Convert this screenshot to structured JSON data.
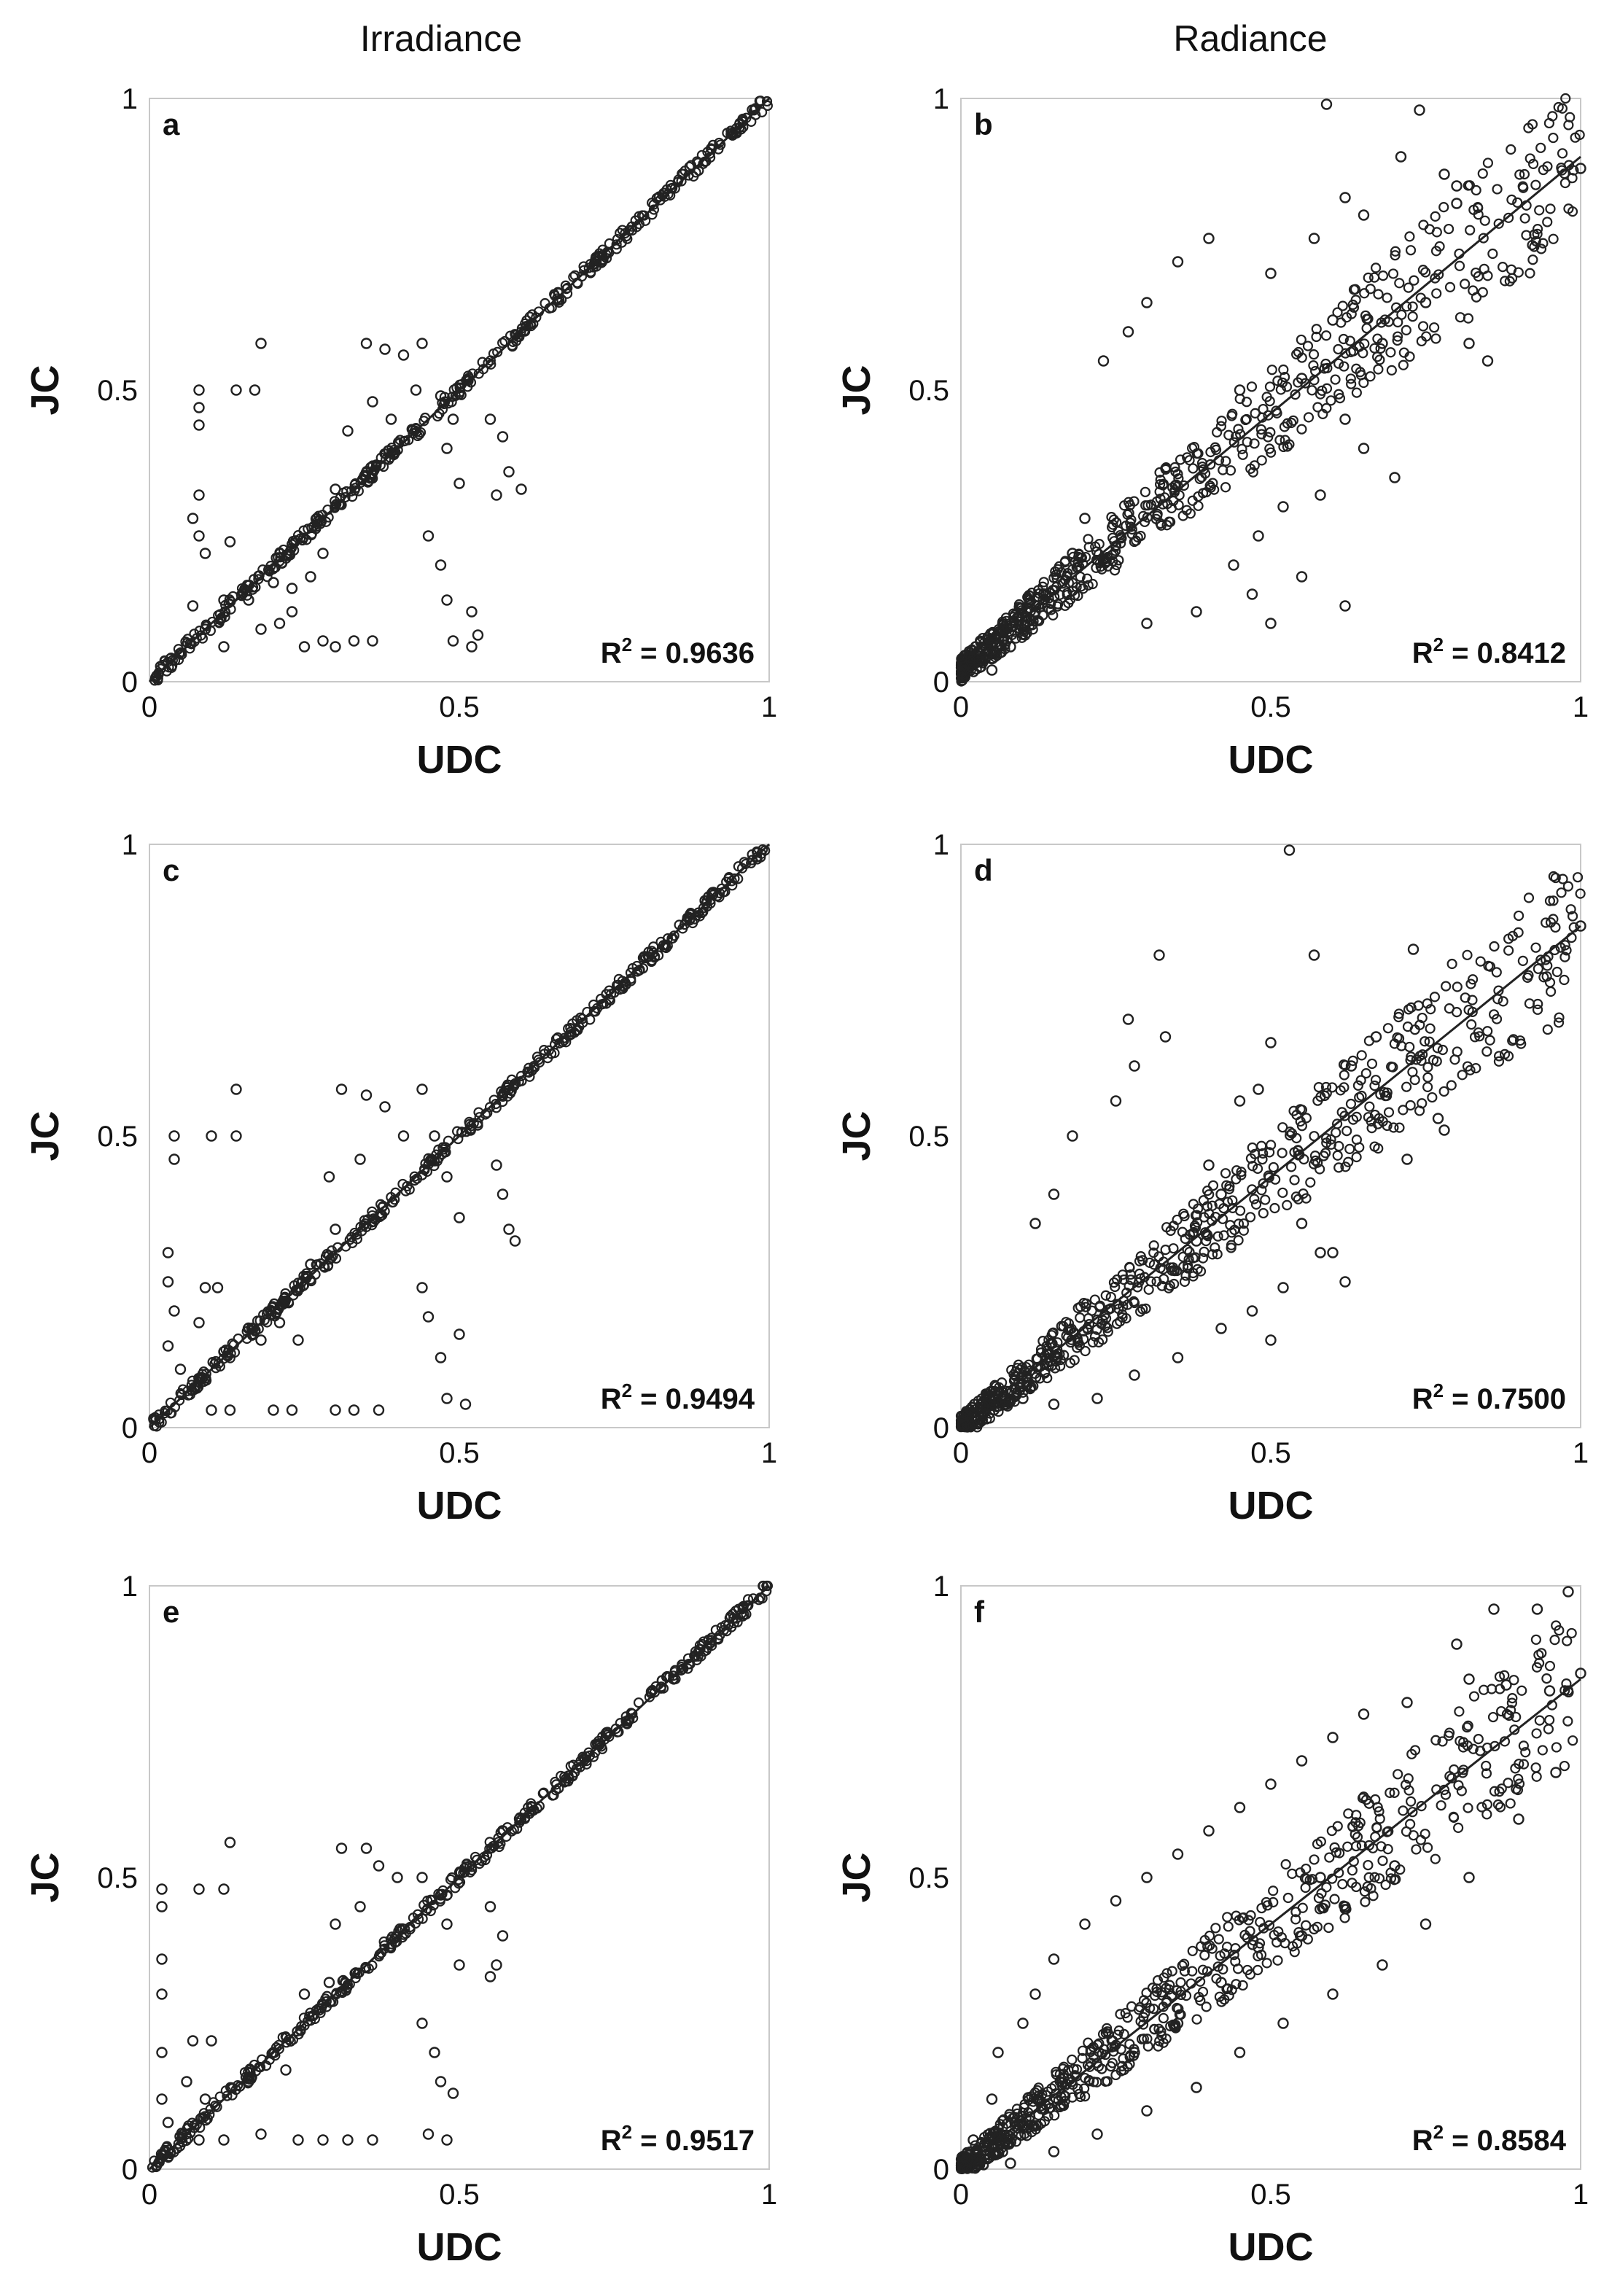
{
  "column_titles": [
    "Irradiance",
    "Radiance"
  ],
  "chart_data": [
    {
      "panel": "a",
      "column": "Irradiance",
      "type": "scatter",
      "xlabel": "UDC",
      "ylabel": "JC",
      "xlim": [
        0,
        1
      ],
      "ylim": [
        0,
        1
      ],
      "x_ticks": [
        "0",
        "0.5",
        "1"
      ],
      "y_ticks": [
        "0",
        "0.5",
        "1"
      ],
      "r2_text": "R2 = 0.9636",
      "r2_base": "R",
      "r2_sup": "2",
      "r2_value": " = 0.9636",
      "fit_line": {
        "slope": 1.0,
        "intercept": 0.0
      },
      "grid": false,
      "marker": "open-circle",
      "points": [
        [
          0.08,
          0.5
        ],
        [
          0.08,
          0.47
        ],
        [
          0.08,
          0.44
        ],
        [
          0.08,
          0.32
        ],
        [
          0.07,
          0.28
        ],
        [
          0.08,
          0.25
        ],
        [
          0.09,
          0.22
        ],
        [
          0.07,
          0.13
        ],
        [
          0.09,
          0.09
        ],
        [
          0.12,
          0.06
        ],
        [
          0.14,
          0.5
        ],
        [
          0.18,
          0.58
        ],
        [
          0.17,
          0.5
        ],
        [
          0.13,
          0.24
        ],
        [
          0.12,
          0.14
        ],
        [
          0.16,
          0.14
        ],
        [
          0.18,
          0.09
        ],
        [
          0.21,
          0.1
        ],
        [
          0.23,
          0.12
        ],
        [
          0.25,
          0.06
        ],
        [
          0.28,
          0.07
        ],
        [
          0.3,
          0.06
        ],
        [
          0.33,
          0.07
        ],
        [
          0.36,
          0.07
        ],
        [
          0.32,
          0.43
        ],
        [
          0.3,
          0.33
        ],
        [
          0.35,
          0.58
        ],
        [
          0.38,
          0.57
        ],
        [
          0.41,
          0.56
        ],
        [
          0.43,
          0.5
        ],
        [
          0.36,
          0.48
        ],
        [
          0.39,
          0.45
        ],
        [
          0.44,
          0.58
        ],
        [
          0.47,
          0.49
        ],
        [
          0.49,
          0.45
        ],
        [
          0.48,
          0.4
        ],
        [
          0.5,
          0.34
        ],
        [
          0.55,
          0.45
        ],
        [
          0.57,
          0.42
        ],
        [
          0.58,
          0.36
        ],
        [
          0.6,
          0.33
        ],
        [
          0.56,
          0.32
        ],
        [
          0.45,
          0.25
        ],
        [
          0.47,
          0.2
        ],
        [
          0.48,
          0.14
        ],
        [
          0.52,
          0.12
        ],
        [
          0.53,
          0.08
        ],
        [
          0.49,
          0.07
        ],
        [
          0.52,
          0.06
        ],
        [
          0.27,
          0.28
        ],
        [
          0.28,
          0.22
        ],
        [
          0.2,
          0.17
        ],
        [
          0.23,
          0.16
        ],
        [
          0.26,
          0.18
        ]
      ]
    },
    {
      "panel": "b",
      "column": "Radiance",
      "type": "scatter",
      "xlabel": "UDC",
      "ylabel": "JC",
      "xlim": [
        0,
        1
      ],
      "ylim": [
        0,
        1
      ],
      "x_ticks": [
        "0",
        "0.5",
        "1"
      ],
      "y_ticks": [
        "0",
        "0.5",
        "1"
      ],
      "r2_text": "R2 = 0.8412",
      "r2_base": "R",
      "r2_sup": "2",
      "r2_value": " = 0.8412",
      "fit_line": {
        "slope": 0.88,
        "intercept": 0.02
      },
      "grid": false,
      "marker": "open-circle",
      "points": [
        [
          0.59,
          0.99
        ],
        [
          0.74,
          0.98
        ],
        [
          0.71,
          0.9
        ],
        [
          0.78,
          0.87
        ],
        [
          0.8,
          0.85
        ],
        [
          0.62,
          0.83
        ],
        [
          0.65,
          0.8
        ],
        [
          0.4,
          0.76
        ],
        [
          0.35,
          0.72
        ],
        [
          0.3,
          0.65
        ],
        [
          0.27,
          0.6
        ],
        [
          0.23,
          0.55
        ],
        [
          0.82,
          0.58
        ],
        [
          0.85,
          0.55
        ],
        [
          0.75,
          0.65
        ],
        [
          0.68,
          0.58
        ],
        [
          0.6,
          0.62
        ],
        [
          0.55,
          0.52
        ],
        [
          0.62,
          0.45
        ],
        [
          0.65,
          0.4
        ],
        [
          0.7,
          0.35
        ],
        [
          0.58,
          0.32
        ],
        [
          0.52,
          0.3
        ],
        [
          0.48,
          0.25
        ],
        [
          0.44,
          0.2
        ],
        [
          0.47,
          0.15
        ],
        [
          0.5,
          0.1
        ],
        [
          0.38,
          0.12
        ],
        [
          0.2,
          0.28
        ],
        [
          0.18,
          0.22
        ],
        [
          0.12,
          0.12
        ],
        [
          0.08,
          0.06
        ],
        [
          0.05,
          0.02
        ],
        [
          0.3,
          0.1
        ],
        [
          0.62,
          0.13
        ],
        [
          0.55,
          0.18
        ],
        [
          0.57,
          0.76
        ],
        [
          0.5,
          0.7
        ],
        [
          0.45,
          0.5
        ],
        [
          0.8,
          0.82
        ],
        [
          1.0,
          0.88
        ]
      ]
    },
    {
      "panel": "c",
      "column": "Irradiance",
      "type": "scatter",
      "xlabel": "UDC",
      "ylabel": "JC",
      "xlim": [
        0,
        1
      ],
      "ylim": [
        0,
        1
      ],
      "x_ticks": [
        "0",
        "0.5",
        "1"
      ],
      "y_ticks": [
        "0",
        "0.5",
        "1"
      ],
      "r2_text": "R2 = 0.9494",
      "r2_base": "R",
      "r2_sup": "2",
      "r2_value": " = 0.9494",
      "fit_line": {
        "slope": 1.0,
        "intercept": 0.0
      },
      "grid": false,
      "marker": "open-circle",
      "points": [
        [
          0.04,
          0.5
        ],
        [
          0.04,
          0.46
        ],
        [
          0.03,
          0.3
        ],
        [
          0.03,
          0.25
        ],
        [
          0.04,
          0.2
        ],
        [
          0.03,
          0.14
        ],
        [
          0.05,
          0.1
        ],
        [
          0.1,
          0.5
        ],
        [
          0.14,
          0.5
        ],
        [
          0.14,
          0.58
        ],
        [
          0.09,
          0.24
        ],
        [
          0.11,
          0.24
        ],
        [
          0.08,
          0.18
        ],
        [
          0.12,
          0.13
        ],
        [
          0.1,
          0.03
        ],
        [
          0.13,
          0.03
        ],
        [
          0.2,
          0.03
        ],
        [
          0.23,
          0.03
        ],
        [
          0.3,
          0.03
        ],
        [
          0.33,
          0.03
        ],
        [
          0.37,
          0.03
        ],
        [
          0.29,
          0.43
        ],
        [
          0.3,
          0.34
        ],
        [
          0.31,
          0.58
        ],
        [
          0.35,
          0.57
        ],
        [
          0.38,
          0.55
        ],
        [
          0.41,
          0.5
        ],
        [
          0.34,
          0.46
        ],
        [
          0.44,
          0.58
        ],
        [
          0.46,
          0.5
        ],
        [
          0.48,
          0.43
        ],
        [
          0.5,
          0.36
        ],
        [
          0.56,
          0.45
        ],
        [
          0.57,
          0.4
        ],
        [
          0.58,
          0.34
        ],
        [
          0.59,
          0.32
        ],
        [
          0.44,
          0.24
        ],
        [
          0.45,
          0.19
        ],
        [
          0.47,
          0.12
        ],
        [
          0.5,
          0.16
        ],
        [
          0.48,
          0.05
        ],
        [
          0.51,
          0.04
        ],
        [
          0.26,
          0.28
        ],
        [
          0.21,
          0.18
        ],
        [
          0.24,
          0.15
        ],
        [
          0.18,
          0.15
        ]
      ]
    },
    {
      "panel": "d",
      "column": "Radiance",
      "type": "scatter",
      "xlabel": "UDC",
      "ylabel": "JC",
      "xlim": [
        0,
        1
      ],
      "ylim": [
        0,
        1
      ],
      "x_ticks": [
        "0",
        "0.5",
        "1"
      ],
      "y_ticks": [
        "0",
        "0.5",
        "1"
      ],
      "r2_text": "R2 = 0.7500",
      "r2_base": "R",
      "r2_sup": "2",
      "r2_value": " = 0.7500",
      "fit_line": {
        "slope": 0.86,
        "intercept": 0.0
      },
      "grid": false,
      "marker": "open-circle",
      "points": [
        [
          0.53,
          0.99
        ],
        [
          0.32,
          0.81
        ],
        [
          0.57,
          0.81
        ],
        [
          0.73,
          0.82
        ],
        [
          0.5,
          0.66
        ],
        [
          0.45,
          0.56
        ],
        [
          0.48,
          0.58
        ],
        [
          0.63,
          0.62
        ],
        [
          0.67,
          0.67
        ],
        [
          0.27,
          0.7
        ],
        [
          0.33,
          0.67
        ],
        [
          0.28,
          0.62
        ],
        [
          0.25,
          0.56
        ],
        [
          0.18,
          0.5
        ],
        [
          0.15,
          0.4
        ],
        [
          0.12,
          0.35
        ],
        [
          0.77,
          0.53
        ],
        [
          0.78,
          0.51
        ],
        [
          0.72,
          0.46
        ],
        [
          0.55,
          0.35
        ],
        [
          0.6,
          0.3
        ],
        [
          0.52,
          0.24
        ],
        [
          0.47,
          0.2
        ],
        [
          0.5,
          0.15
        ],
        [
          0.42,
          0.17
        ],
        [
          0.35,
          0.12
        ],
        [
          0.28,
          0.09
        ],
        [
          0.22,
          0.05
        ],
        [
          0.15,
          0.04
        ],
        [
          0.1,
          0.05
        ],
        [
          0.62,
          0.25
        ],
        [
          0.58,
          0.3
        ],
        [
          0.4,
          0.45
        ],
        [
          0.42,
          0.4
        ],
        [
          0.38,
          0.32
        ],
        [
          1.0,
          0.86
        ]
      ]
    },
    {
      "panel": "e",
      "column": "Irradiance",
      "type": "scatter",
      "xlabel": "UDC",
      "ylabel": "JC",
      "xlim": [
        0,
        1
      ],
      "ylim": [
        0,
        1
      ],
      "x_ticks": [
        "0",
        "0.5",
        "1"
      ],
      "y_ticks": [
        "0",
        "0.5",
        "1"
      ],
      "r2_text": "R2 = 0.9517",
      "r2_base": "R",
      "r2_sup": "2",
      "r2_value": " = 0.9517",
      "fit_line": {
        "slope": 1.0,
        "intercept": 0.0
      },
      "grid": false,
      "marker": "open-circle",
      "points": [
        [
          0.02,
          0.48
        ],
        [
          0.02,
          0.45
        ],
        [
          0.02,
          0.36
        ],
        [
          0.02,
          0.3
        ],
        [
          0.02,
          0.2
        ],
        [
          0.02,
          0.12
        ],
        [
          0.03,
          0.08
        ],
        [
          0.08,
          0.48
        ],
        [
          0.12,
          0.48
        ],
        [
          0.13,
          0.56
        ],
        [
          0.07,
          0.22
        ],
        [
          0.1,
          0.22
        ],
        [
          0.06,
          0.15
        ],
        [
          0.09,
          0.12
        ],
        [
          0.08,
          0.05
        ],
        [
          0.12,
          0.05
        ],
        [
          0.18,
          0.06
        ],
        [
          0.24,
          0.05
        ],
        [
          0.28,
          0.05
        ],
        [
          0.32,
          0.05
        ],
        [
          0.36,
          0.05
        ],
        [
          0.3,
          0.42
        ],
        [
          0.29,
          0.32
        ],
        [
          0.31,
          0.55
        ],
        [
          0.35,
          0.55
        ],
        [
          0.37,
          0.52
        ],
        [
          0.4,
          0.5
        ],
        [
          0.34,
          0.45
        ],
        [
          0.44,
          0.5
        ],
        [
          0.47,
          0.47
        ],
        [
          0.48,
          0.42
        ],
        [
          0.5,
          0.35
        ],
        [
          0.55,
          0.45
        ],
        [
          0.57,
          0.4
        ],
        [
          0.56,
          0.35
        ],
        [
          0.55,
          0.33
        ],
        [
          0.44,
          0.25
        ],
        [
          0.46,
          0.2
        ],
        [
          0.47,
          0.15
        ],
        [
          0.49,
          0.13
        ],
        [
          0.45,
          0.06
        ],
        [
          0.48,
          0.05
        ],
        [
          0.25,
          0.3
        ],
        [
          0.2,
          0.2
        ],
        [
          0.22,
          0.17
        ],
        [
          0.16,
          0.15
        ]
      ]
    },
    {
      "panel": "f",
      "column": "Radiance",
      "type": "scatter",
      "xlabel": "UDC",
      "ylabel": "JC",
      "xlim": [
        0,
        1
      ],
      "ylim": [
        0,
        1
      ],
      "x_ticks": [
        "0",
        "0.5",
        "1"
      ],
      "y_ticks": [
        "0",
        "0.5",
        "1"
      ],
      "r2_text": "R2 = 0.8584",
      "r2_base": "R",
      "r2_sup": "2",
      "r2_value": " = 0.8584",
      "fit_line": {
        "slope": 0.84,
        "intercept": 0.0
      },
      "grid": false,
      "marker": "open-circle",
      "points": [
        [
          0.98,
          0.99
        ],
        [
          0.93,
          0.96
        ],
        [
          0.86,
          0.96
        ],
        [
          0.8,
          0.9
        ],
        [
          0.82,
          0.84
        ],
        [
          0.88,
          0.83
        ],
        [
          0.95,
          0.82
        ],
        [
          0.72,
          0.8
        ],
        [
          0.65,
          0.78
        ],
        [
          0.6,
          0.74
        ],
        [
          0.55,
          0.7
        ],
        [
          0.5,
          0.66
        ],
        [
          0.45,
          0.62
        ],
        [
          0.4,
          0.58
        ],
        [
          0.35,
          0.54
        ],
        [
          0.3,
          0.5
        ],
        [
          0.25,
          0.46
        ],
        [
          0.2,
          0.42
        ],
        [
          0.15,
          0.36
        ],
        [
          0.12,
          0.3
        ],
        [
          0.1,
          0.25
        ],
        [
          0.06,
          0.2
        ],
        [
          0.05,
          0.12
        ],
        [
          0.02,
          0.05
        ],
        [
          0.03,
          0.02
        ],
        [
          0.08,
          0.01
        ],
        [
          0.15,
          0.03
        ],
        [
          0.22,
          0.06
        ],
        [
          0.3,
          0.1
        ],
        [
          0.38,
          0.14
        ],
        [
          0.45,
          0.2
        ],
        [
          0.52,
          0.25
        ],
        [
          0.6,
          0.3
        ],
        [
          0.68,
          0.35
        ],
        [
          0.75,
          0.42
        ],
        [
          0.82,
          0.5
        ],
        [
          0.9,
          0.6
        ],
        [
          0.96,
          0.68
        ],
        [
          0.7,
          0.52
        ],
        [
          0.62,
          0.45
        ],
        [
          0.55,
          0.4
        ],
        [
          0.42,
          0.32
        ],
        [
          0.35,
          0.25
        ],
        [
          0.28,
          0.2
        ],
        [
          0.48,
          0.38
        ],
        [
          0.58,
          0.5
        ],
        [
          1.0,
          0.85
        ]
      ]
    }
  ]
}
